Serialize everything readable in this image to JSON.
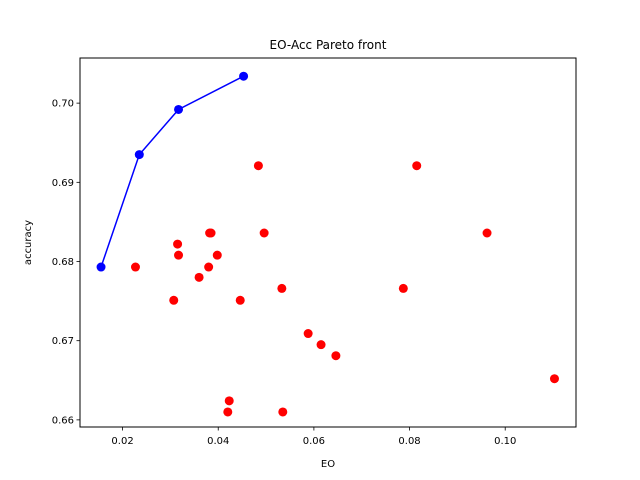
{
  "chart_data": {
    "type": "scatter",
    "title": "EO-Acc Pareto front",
    "xlabel": "EO",
    "ylabel": "accuracy",
    "xlim": [
      0.0111,
      0.1148
    ],
    "ylim": [
      0.6591,
      0.7057
    ],
    "x_ticks": [
      0.02,
      0.04,
      0.06,
      0.08,
      0.1
    ],
    "x_tick_labels": [
      "0.02",
      "0.04",
      "0.06",
      "0.08",
      "0.10"
    ],
    "y_ticks": [
      0.66,
      0.67,
      0.68,
      0.69,
      0.7
    ],
    "y_tick_labels": [
      "0.66",
      "0.67",
      "0.68",
      "0.69",
      "0.70"
    ],
    "grid": false,
    "series": [
      {
        "kind": "points",
        "color": "#ff0000",
        "points": [
          {
            "x": 0.0227,
            "y": 0.6793
          },
          {
            "x": 0.0307,
            "y": 0.6751
          },
          {
            "x": 0.0315,
            "y": 0.6822
          },
          {
            "x": 0.0317,
            "y": 0.6808
          },
          {
            "x": 0.036,
            "y": 0.678
          },
          {
            "x": 0.038,
            "y": 0.6793
          },
          {
            "x": 0.0382,
            "y": 0.6836
          },
          {
            "x": 0.0385,
            "y": 0.6836
          },
          {
            "x": 0.0398,
            "y": 0.6808
          },
          {
            "x": 0.042,
            "y": 0.661
          },
          {
            "x": 0.0423,
            "y": 0.6624
          },
          {
            "x": 0.0446,
            "y": 0.6751
          },
          {
            "x": 0.0484,
            "y": 0.6921
          },
          {
            "x": 0.0496,
            "y": 0.6836
          },
          {
            "x": 0.0533,
            "y": 0.6766
          },
          {
            "x": 0.0535,
            "y": 0.661
          },
          {
            "x": 0.0588,
            "y": 0.6709
          },
          {
            "x": 0.0615,
            "y": 0.6695
          },
          {
            "x": 0.0646,
            "y": 0.6681
          },
          {
            "x": 0.0787,
            "y": 0.6766
          },
          {
            "x": 0.0815,
            "y": 0.6921
          },
          {
            "x": 0.0962,
            "y": 0.6836
          },
          {
            "x": 0.1103,
            "y": 0.6652
          }
        ]
      },
      {
        "kind": "line-points",
        "color": "#0000ff",
        "points": [
          {
            "x": 0.0155,
            "y": 0.6793
          },
          {
            "x": 0.0235,
            "y": 0.6935
          },
          {
            "x": 0.0317,
            "y": 0.6992
          },
          {
            "x": 0.0453,
            "y": 0.7034
          }
        ]
      }
    ]
  }
}
